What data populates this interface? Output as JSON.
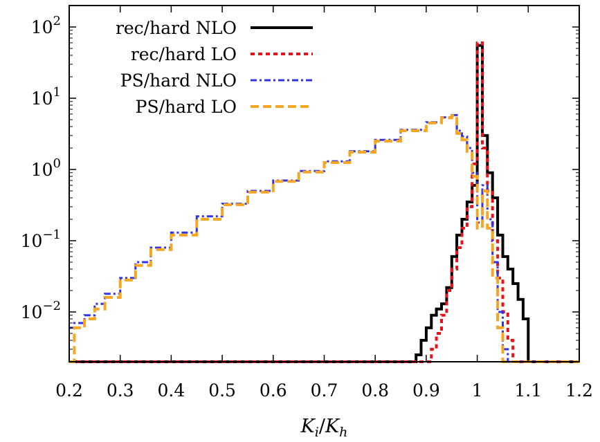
{
  "chart_data": {
    "type": "line",
    "xlabel_main": "K",
    "xlabel_sub_num": "i",
    "xlabel_slash": "/",
    "xlabel_sub_den": "h",
    "ylabel": "",
    "xlim": [
      0.2,
      1.2
    ],
    "ylim": [
      0.002,
      200
    ],
    "yscale": "log",
    "grid": false,
    "legend_position": "top-left",
    "x_ticks": [
      {
        "value": 0.2,
        "label": "0.2"
      },
      {
        "value": 0.3,
        "label": "0.3"
      },
      {
        "value": 0.4,
        "label": "0.4"
      },
      {
        "value": 0.5,
        "label": "0.5"
      },
      {
        "value": 0.6,
        "label": "0.6"
      },
      {
        "value": 0.7,
        "label": "0.7"
      },
      {
        "value": 0.8,
        "label": "0.8"
      },
      {
        "value": 0.9,
        "label": "0.9"
      },
      {
        "value": 1.0,
        "label": "1"
      },
      {
        "value": 1.1,
        "label": "1.1"
      },
      {
        "value": 1.2,
        "label": "1.2"
      }
    ],
    "y_ticks": [
      {
        "value": 0.01,
        "base": "10",
        "exp": "−2"
      },
      {
        "value": 0.1,
        "base": "10",
        "exp": "−1"
      },
      {
        "value": 1,
        "base": "10",
        "exp": "0"
      },
      {
        "value": 10,
        "base": "10",
        "exp": "1"
      },
      {
        "value": 100,
        "base": "10",
        "exp": "2"
      }
    ],
    "series": [
      {
        "name": "rec/hard NLO",
        "color": "#000000",
        "dash": "solid",
        "x": [
          0.2,
          0.88,
          0.89,
          0.9,
          0.91,
          0.92,
          0.93,
          0.94,
          0.95,
          0.96,
          0.97,
          0.98,
          0.99,
          1.0,
          1.01,
          1.02,
          1.03,
          1.04,
          1.05,
          1.06,
          1.07,
          1.08,
          1.09,
          1.1,
          1.2
        ],
        "y": [
          0.002,
          0.0025,
          0.004,
          0.006,
          0.009,
          0.011,
          0.013,
          0.022,
          0.06,
          0.12,
          0.2,
          0.35,
          0.6,
          55,
          3.0,
          0.9,
          0.4,
          0.12,
          0.06,
          0.04,
          0.025,
          0.015,
          0.008,
          0.002,
          0.002
        ]
      },
      {
        "name": "rec/hard LO",
        "color": "#e8121a",
        "dash": "dotted",
        "x": [
          0.2,
          0.91,
          0.92,
          0.93,
          0.94,
          0.95,
          0.96,
          0.97,
          0.98,
          0.99,
          1.0,
          1.01,
          1.02,
          1.03,
          1.04,
          1.05,
          1.06,
          1.07,
          1.2
        ],
        "y": [
          0.002,
          0.003,
          0.005,
          0.009,
          0.02,
          0.04,
          0.08,
          0.15,
          0.3,
          1.2,
          60,
          2.0,
          0.5,
          0.1,
          0.03,
          0.01,
          0.004,
          0.002,
          0.002
        ]
      },
      {
        "name": "PS/hard NLO",
        "color": "#3232e6",
        "dash": "dashdot",
        "x": [
          0.2,
          0.21,
          0.23,
          0.25,
          0.27,
          0.3,
          0.33,
          0.36,
          0.4,
          0.45,
          0.5,
          0.55,
          0.6,
          0.65,
          0.7,
          0.75,
          0.8,
          0.85,
          0.9,
          0.93,
          0.95,
          0.96,
          0.97,
          0.98,
          0.99,
          1.0,
          1.01,
          1.02,
          1.03,
          1.04,
          1.05,
          1.06,
          1.2
        ],
        "y": [
          0.006,
          0.007,
          0.009,
          0.013,
          0.018,
          0.03,
          0.05,
          0.08,
          0.13,
          0.22,
          0.33,
          0.5,
          0.7,
          0.95,
          1.3,
          1.8,
          2.6,
          3.6,
          4.6,
          5.4,
          5.8,
          3.5,
          2.9,
          2.0,
          0.9,
          0.18,
          0.6,
          0.2,
          0.05,
          0.01,
          0.003,
          0.002,
          0.002
        ]
      },
      {
        "name": "PS/hard LO",
        "color": "#f5a623",
        "dash": "dashed",
        "x": [
          0.2,
          0.21,
          0.23,
          0.25,
          0.27,
          0.3,
          0.33,
          0.36,
          0.4,
          0.45,
          0.5,
          0.55,
          0.6,
          0.65,
          0.7,
          0.75,
          0.8,
          0.85,
          0.9,
          0.93,
          0.95,
          0.96,
          0.97,
          0.98,
          0.99,
          1.0,
          1.01,
          1.02,
          1.03,
          1.04,
          1.05,
          1.2
        ],
        "y": [
          0.002,
          0.006,
          0.008,
          0.011,
          0.016,
          0.028,
          0.045,
          0.075,
          0.12,
          0.2,
          0.32,
          0.48,
          0.68,
          0.92,
          1.25,
          1.75,
          2.5,
          3.5,
          4.5,
          5.3,
          5.7,
          3.2,
          2.6,
          1.8,
          0.8,
          0.15,
          0.5,
          0.15,
          0.03,
          0.006,
          0.002,
          0.002
        ]
      }
    ]
  }
}
